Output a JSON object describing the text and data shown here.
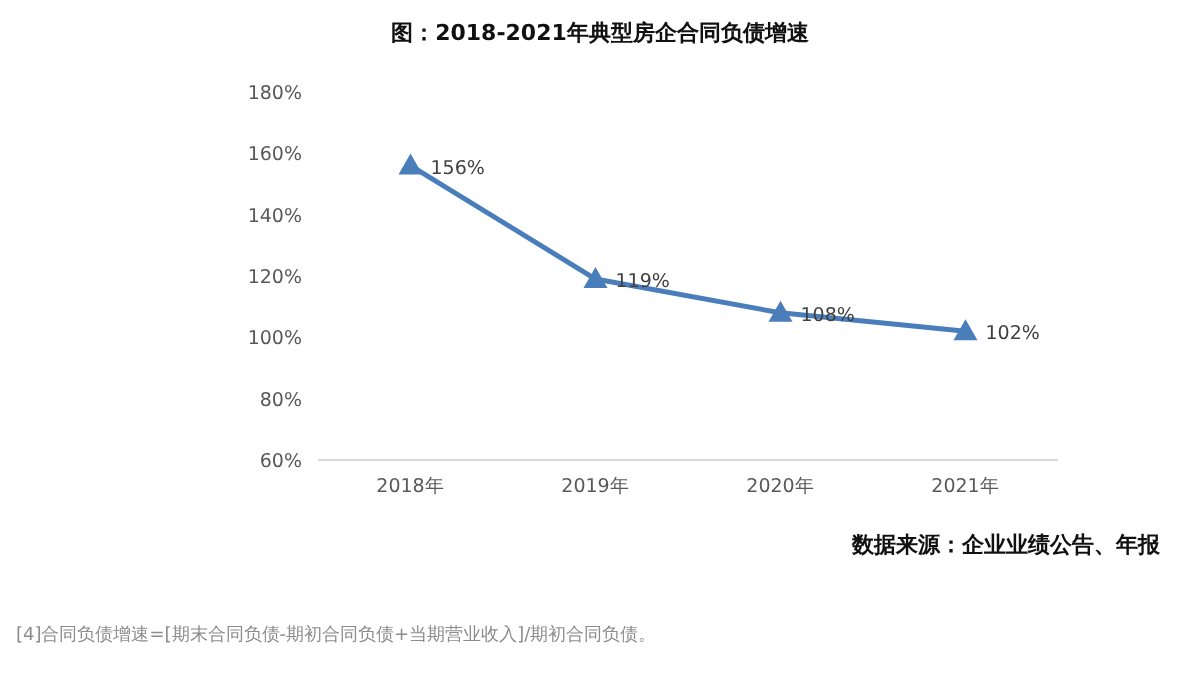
{
  "chart_data": {
    "type": "line",
    "title": "图：2018-2021年典型房企合同负债增速",
    "categories": [
      "2018年",
      "2019年",
      "2020年",
      "2021年"
    ],
    "values": [
      156,
      119,
      108,
      102
    ],
    "value_labels": [
      "156%",
      "119%",
      "108%",
      "102%"
    ],
    "color": "#4a7ebb",
    "marker": "triangle",
    "ylim": [
      60,
      180
    ],
    "yticks": [
      {
        "value": 60,
        "label": "60%"
      },
      {
        "value": 80,
        "label": "80%"
      },
      {
        "value": 100,
        "label": "100%"
      },
      {
        "value": 120,
        "label": "120%"
      },
      {
        "value": 140,
        "label": "140%"
      },
      {
        "value": 160,
        "label": "160%"
      },
      {
        "value": 180,
        "label": "180%"
      }
    ],
    "annotations": [
      "数据来源：企业业绩公告、年报",
      "[4]合同负债增速=[期末合同负债-期初合同负债+当期营业收入]/期初合同负债。"
    ]
  }
}
